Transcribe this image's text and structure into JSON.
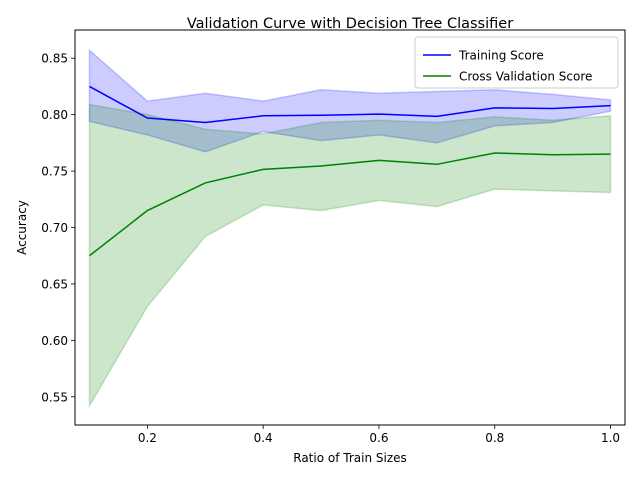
{
  "chart_data": {
    "type": "line",
    "title": "Validation Curve with Decision Tree Classifier",
    "xlabel": "Ratio of Train Sizes",
    "ylabel": "Accuracy",
    "xlim": [
      0.075,
      1.025
    ],
    "ylim": [
      0.525,
      0.875
    ],
    "xticks": [
      0.2,
      0.4,
      0.6,
      0.8,
      1.0
    ],
    "xtick_labels": [
      "0.2",
      "0.4",
      "0.6",
      "0.8",
      "1.0"
    ],
    "yticks": [
      0.55,
      0.6,
      0.65,
      0.7,
      0.75,
      0.8,
      0.85
    ],
    "ytick_labels": [
      "0.55",
      "0.60",
      "0.65",
      "0.70",
      "0.75",
      "0.80",
      "0.85"
    ],
    "grid": false,
    "legend_position": "top-right",
    "x": [
      0.1,
      0.2,
      0.3,
      0.4,
      0.5,
      0.6,
      0.7,
      0.8,
      0.9,
      1.0
    ],
    "series": [
      {
        "name": "Training Score",
        "color": "#0000ff",
        "band_color": "#0000ff",
        "band_opacity": 0.2,
        "values": [
          0.825,
          0.797,
          0.793,
          0.799,
          0.7995,
          0.8005,
          0.7985,
          0.806,
          0.8055,
          0.808
        ],
        "upper": [
          0.857,
          0.812,
          0.819,
          0.812,
          0.822,
          0.819,
          0.8205,
          0.822,
          0.818,
          0.813
        ],
        "lower": [
          0.794,
          0.782,
          0.767,
          0.785,
          0.777,
          0.782,
          0.775,
          0.79,
          0.793,
          0.803
        ]
      },
      {
        "name": "Cross Validation Score",
        "color": "#008000",
        "band_color": "#008000",
        "band_opacity": 0.2,
        "values": [
          0.675,
          0.715,
          0.7395,
          0.7515,
          0.7545,
          0.7595,
          0.756,
          0.766,
          0.7645,
          0.765
        ],
        "upper": [
          0.809,
          0.8,
          0.787,
          0.783,
          0.793,
          0.795,
          0.793,
          0.798,
          0.795,
          0.799
        ],
        "lower": [
          0.542,
          0.63,
          0.692,
          0.72,
          0.715,
          0.724,
          0.7185,
          0.734,
          0.7325,
          0.731
        ]
      }
    ]
  }
}
